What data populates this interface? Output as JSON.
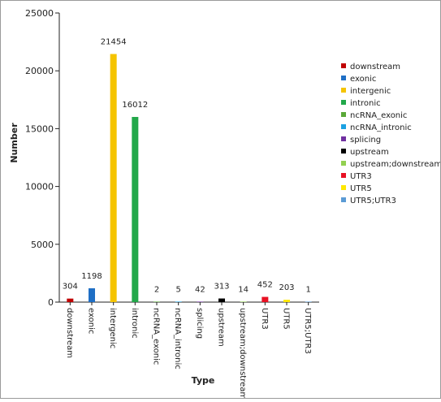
{
  "chart_data": {
    "type": "bar",
    "xlabel": "Type",
    "ylabel": "Number",
    "ylim": [
      0,
      25000
    ],
    "yticks": [
      0,
      5000,
      10000,
      15000,
      20000,
      25000
    ],
    "grid": false,
    "legend_position": "right",
    "categories": [
      "downstream",
      "exonic",
      "intergenic",
      "intronic",
      "ncRNA_exonic",
      "ncRNA_intronic",
      "splicing",
      "upstream",
      "upstream;downstream",
      "UTR3",
      "UTR5",
      "UTR5;UTR3"
    ],
    "values": [
      304,
      1198,
      21454,
      16012,
      2,
      5,
      42,
      313,
      14,
      452,
      203,
      1
    ],
    "colors": [
      "#c00000",
      "#1f6fc5",
      "#f5c400",
      "#22a84a",
      "#5aa838",
      "#1ba1e2",
      "#7030a0",
      "#000000",
      "#92d050",
      "#e81123",
      "#ffe800",
      "#5b9bd5"
    ]
  },
  "legend": {
    "entries": [
      "downstream",
      "exonic",
      "intergenic",
      "intronic",
      "ncRNA_exonic",
      "ncRNA_intronic",
      "splicing",
      "upstream",
      "upstream;downstream",
      "UTR3",
      "UTR5",
      "UTR5;UTR3"
    ]
  }
}
